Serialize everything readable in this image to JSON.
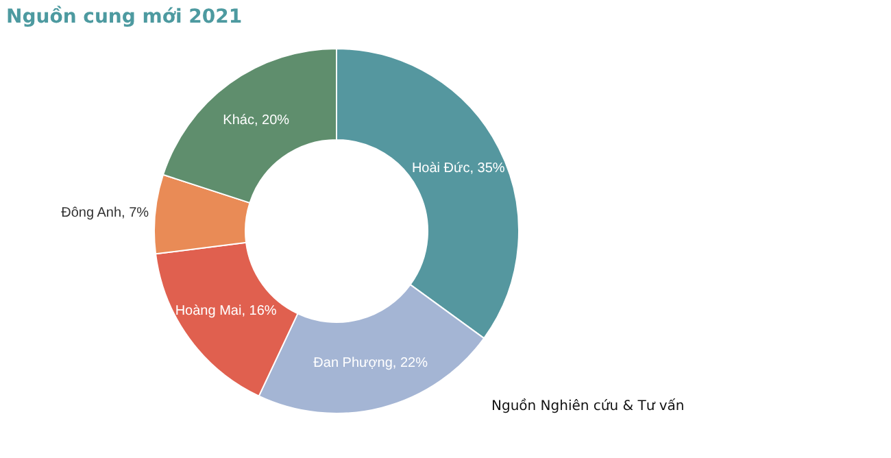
{
  "chart_data": {
    "type": "donut",
    "title": "Nguồn cung mới 2021",
    "categories": [
      "Hoài Đức",
      "Đan Phượng",
      "Hoàng Mai",
      "Đông Anh",
      "Khác"
    ],
    "values": [
      35,
      22,
      16,
      7,
      20
    ],
    "value_labels": [
      "35%",
      "22%",
      "16%",
      "7%",
      "20%"
    ],
    "colors": [
      "#55979f",
      "#a4b5d4",
      "#e0604f",
      "#e98b56",
      "#5f8e6d"
    ],
    "annotations": [
      "Nguồn Nghiên cứu & Tư vấn"
    ]
  }
}
